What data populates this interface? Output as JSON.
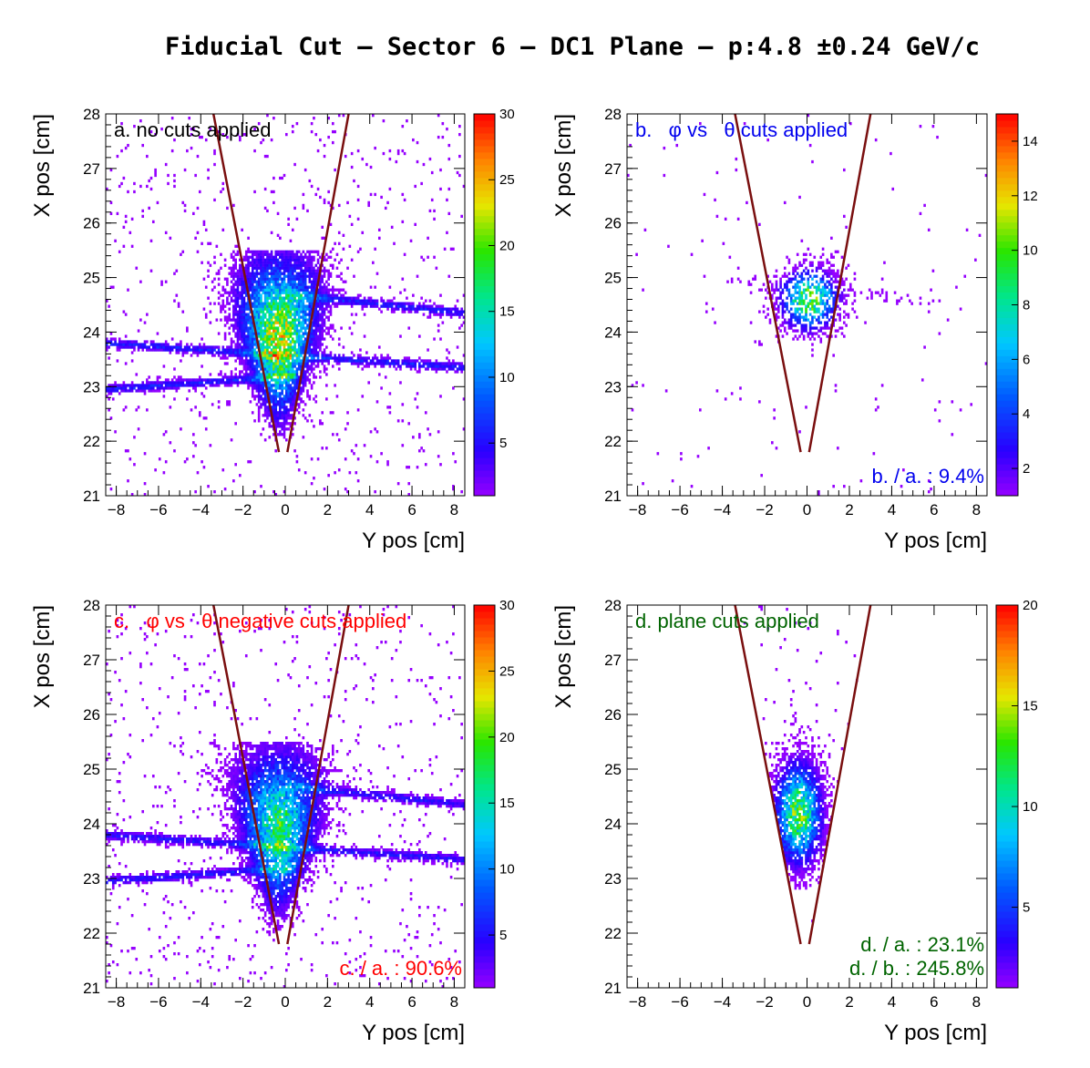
{
  "title": "Fiducial Cut – Sector 6 – DC1 Plane –  p:4.8  ±0.24 GeV/c",
  "chart_data": [
    {
      "type": "heatmap",
      "panel": "a",
      "label": "a. no cuts applied",
      "label_color": "#000000",
      "ratio_labels": [],
      "xlabel": "Y pos [cm]",
      "ylabel": "X pos [cm]",
      "xlim": [
        -8.5,
        8.5
      ],
      "ylim": [
        21,
        28
      ],
      "xticks": [
        "−8",
        "−6",
        "−4",
        "−2",
        "0",
        "2",
        "4",
        "6",
        "8"
      ],
      "yticks": [
        "21",
        "22",
        "23",
        "24",
        "25",
        "26",
        "27",
        "28"
      ],
      "zlim": [
        1,
        30
      ],
      "zticks": [
        "5",
        "10",
        "15",
        "20",
        "25",
        "30"
      ],
      "fiducial_lines": [
        [
          [
            -3.4,
            28
          ],
          [
            -0.3,
            21.8
          ]
        ],
        [
          [
            3.0,
            28
          ],
          [
            0.1,
            21.8
          ]
        ]
      ],
      "peak_xy": [
        -0.3,
        23.7
      ],
      "peak_value": 22
    },
    {
      "type": "heatmap",
      "panel": "b",
      "label": "b.   φ vs   θ cuts applied",
      "label_color": "#0000ee",
      "ratio_labels": [
        "b. / a. : 9.4%"
      ],
      "xlabel": "Y pos [cm]",
      "ylabel": "X pos [cm]",
      "xlim": [
        -8.5,
        8.5
      ],
      "ylim": [
        21,
        28
      ],
      "xticks": [
        "−8",
        "−6",
        "−4",
        "−2",
        "0",
        "2",
        "4",
        "6",
        "8"
      ],
      "yticks": [
        "21",
        "22",
        "23",
        "24",
        "25",
        "26",
        "27",
        "28"
      ],
      "zlim": [
        1,
        15
      ],
      "zticks": [
        "2",
        "4",
        "6",
        "8",
        "10",
        "12",
        "14"
      ],
      "fiducial_lines": [
        [
          [
            -3.4,
            28
          ],
          [
            -0.3,
            21.8
          ]
        ],
        [
          [
            3.0,
            28
          ],
          [
            0.1,
            21.8
          ]
        ]
      ],
      "peak_xy": [
        0.2,
        24.8
      ],
      "peak_value": 11
    },
    {
      "type": "heatmap",
      "panel": "c",
      "label": "c.   φ vs   θ negative cuts applied",
      "label_color": "#ff0000",
      "ratio_labels": [
        "c. / a. : 90.6%"
      ],
      "xlabel": "Y pos [cm]",
      "ylabel": "X pos [cm]",
      "xlim": [
        -8.5,
        8.5
      ],
      "ylim": [
        21,
        28
      ],
      "xticks": [
        "−8",
        "−6",
        "−4",
        "−2",
        "0",
        "2",
        "4",
        "6",
        "8"
      ],
      "yticks": [
        "21",
        "22",
        "23",
        "24",
        "25",
        "26",
        "27",
        "28"
      ],
      "zlim": [
        1,
        30
      ],
      "zticks": [
        "5",
        "10",
        "15",
        "20",
        "25",
        "30"
      ],
      "fiducial_lines": [
        [
          [
            -3.4,
            28
          ],
          [
            -0.3,
            21.8
          ]
        ],
        [
          [
            3.0,
            28
          ],
          [
            0.1,
            21.8
          ]
        ]
      ],
      "peak_xy": [
        -0.3,
        23.6
      ],
      "peak_value": 20
    },
    {
      "type": "heatmap",
      "panel": "d",
      "label": "d. plane cuts applied",
      "label_color": "#006400",
      "ratio_labels": [
        "d. / a. : 23.1%",
        "d. / b. : 245.8%"
      ],
      "xlabel": "Y pos [cm]",
      "ylabel": "X pos [cm]",
      "xlim": [
        -8.5,
        8.5
      ],
      "ylim": [
        21,
        28
      ],
      "xticks": [
        "−8",
        "−6",
        "−4",
        "−2",
        "0",
        "2",
        "4",
        "6",
        "8"
      ],
      "yticks": [
        "21",
        "22",
        "23",
        "24",
        "25",
        "26",
        "27",
        "28"
      ],
      "zlim": [
        1,
        20
      ],
      "zticks": [
        "5",
        "10",
        "15",
        "20"
      ],
      "fiducial_lines": [
        [
          [
            -3.4,
            28
          ],
          [
            -0.3,
            21.8
          ]
        ],
        [
          [
            3.0,
            28
          ],
          [
            0.1,
            21.8
          ]
        ]
      ],
      "peak_xy": [
        -0.4,
        24.1
      ],
      "peak_value": 13
    }
  ]
}
